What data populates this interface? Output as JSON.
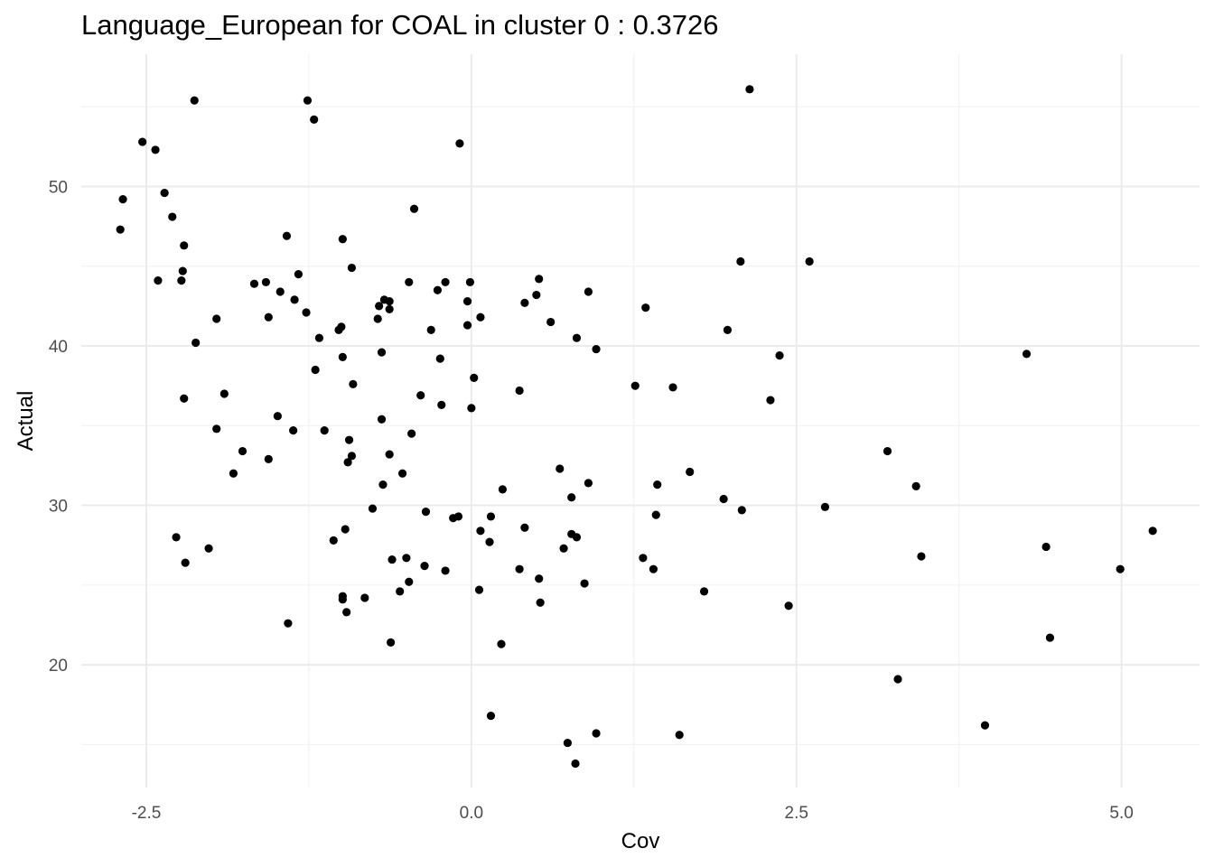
{
  "chart_data": {
    "type": "scatter",
    "title": "Language_European for COAL in cluster 0 : 0.3726",
    "xlabel": "Cov",
    "ylabel": "Actual",
    "xlim": [
      -3.0,
      5.6
    ],
    "ylim": [
      12.3,
      58.3
    ],
    "x_ticks": [
      -2.5,
      0.0,
      2.5,
      5.0
    ],
    "x_tick_labels": [
      "-2.5",
      "0.0",
      "2.5",
      "5.0"
    ],
    "y_ticks": [
      20,
      30,
      40,
      50
    ],
    "y_tick_labels": [
      "20",
      "30",
      "40",
      "50"
    ],
    "grid": true,
    "point_color": "#000000",
    "points": [
      {
        "x": -2.7,
        "y": 47.3
      },
      {
        "x": -2.68,
        "y": 49.2
      },
      {
        "x": -2.53,
        "y": 52.8
      },
      {
        "x": -2.43,
        "y": 52.3
      },
      {
        "x": -2.41,
        "y": 44.1
      },
      {
        "x": -2.36,
        "y": 49.6
      },
      {
        "x": -2.3,
        "y": 48.1
      },
      {
        "x": -2.27,
        "y": 28.0
      },
      {
        "x": -2.23,
        "y": 44.1
      },
      {
        "x": -2.22,
        "y": 44.7
      },
      {
        "x": -2.21,
        "y": 46.3
      },
      {
        "x": -2.21,
        "y": 36.7
      },
      {
        "x": -2.2,
        "y": 26.4
      },
      {
        "x": -2.13,
        "y": 55.4
      },
      {
        "x": -2.12,
        "y": 40.2
      },
      {
        "x": -2.02,
        "y": 27.3
      },
      {
        "x": -1.96,
        "y": 41.7
      },
      {
        "x": -1.96,
        "y": 34.8
      },
      {
        "x": -1.9,
        "y": 37.0
      },
      {
        "x": -1.83,
        "y": 32.0
      },
      {
        "x": -1.76,
        "y": 33.4
      },
      {
        "x": -1.67,
        "y": 43.9
      },
      {
        "x": -1.58,
        "y": 44.0
      },
      {
        "x": -1.56,
        "y": 41.8
      },
      {
        "x": -1.56,
        "y": 32.9
      },
      {
        "x": -1.49,
        "y": 35.6
      },
      {
        "x": -1.47,
        "y": 43.4
      },
      {
        "x": -1.42,
        "y": 46.9
      },
      {
        "x": -1.41,
        "y": 22.6
      },
      {
        "x": -1.37,
        "y": 34.7
      },
      {
        "x": -1.36,
        "y": 42.9
      },
      {
        "x": -1.33,
        "y": 44.5
      },
      {
        "x": -1.27,
        "y": 42.1
      },
      {
        "x": -1.26,
        "y": 55.4
      },
      {
        "x": -1.21,
        "y": 54.2
      },
      {
        "x": -1.2,
        "y": 38.5
      },
      {
        "x": -1.17,
        "y": 40.5
      },
      {
        "x": -1.13,
        "y": 34.7
      },
      {
        "x": -1.06,
        "y": 27.8
      },
      {
        "x": -1.02,
        "y": 41.0
      },
      {
        "x": -1.0,
        "y": 41.2
      },
      {
        "x": -0.99,
        "y": 46.7
      },
      {
        "x": -0.99,
        "y": 39.3
      },
      {
        "x": -0.99,
        "y": 24.3
      },
      {
        "x": -0.99,
        "y": 24.1
      },
      {
        "x": -0.97,
        "y": 28.5
      },
      {
        "x": -0.96,
        "y": 23.3
      },
      {
        "x": -0.95,
        "y": 32.7
      },
      {
        "x": -0.94,
        "y": 34.1
      },
      {
        "x": -0.92,
        "y": 33.1
      },
      {
        "x": -0.92,
        "y": 44.9
      },
      {
        "x": -0.91,
        "y": 37.6
      },
      {
        "x": -0.82,
        "y": 24.2
      },
      {
        "x": -0.76,
        "y": 29.8
      },
      {
        "x": -0.72,
        "y": 41.7
      },
      {
        "x": -0.71,
        "y": 42.5
      },
      {
        "x": -0.69,
        "y": 39.6
      },
      {
        "x": -0.69,
        "y": 35.4
      },
      {
        "x": -0.68,
        "y": 31.3
      },
      {
        "x": -0.67,
        "y": 42.9
      },
      {
        "x": -0.63,
        "y": 42.8
      },
      {
        "x": -0.63,
        "y": 42.3
      },
      {
        "x": -0.63,
        "y": 33.2
      },
      {
        "x": -0.62,
        "y": 21.4
      },
      {
        "x": -0.61,
        "y": 26.6
      },
      {
        "x": -0.55,
        "y": 24.6
      },
      {
        "x": -0.53,
        "y": 32.0
      },
      {
        "x": -0.5,
        "y": 26.7
      },
      {
        "x": -0.48,
        "y": 44.0
      },
      {
        "x": -0.48,
        "y": 25.2
      },
      {
        "x": -0.46,
        "y": 34.5
      },
      {
        "x": -0.44,
        "y": 48.6
      },
      {
        "x": -0.39,
        "y": 36.9
      },
      {
        "x": -0.36,
        "y": 26.2
      },
      {
        "x": -0.35,
        "y": 29.6
      },
      {
        "x": -0.31,
        "y": 41.0
      },
      {
        "x": -0.26,
        "y": 43.5
      },
      {
        "x": -0.24,
        "y": 39.2
      },
      {
        "x": -0.23,
        "y": 36.3
      },
      {
        "x": -0.2,
        "y": 25.9
      },
      {
        "x": -0.2,
        "y": 44.0
      },
      {
        "x": -0.14,
        "y": 29.2
      },
      {
        "x": -0.1,
        "y": 29.3
      },
      {
        "x": -0.09,
        "y": 52.7
      },
      {
        "x": -0.03,
        "y": 42.8
      },
      {
        "x": -0.03,
        "y": 41.3
      },
      {
        "x": -0.01,
        "y": 44.0
      },
      {
        "x": 0.0,
        "y": 36.1
      },
      {
        "x": 0.02,
        "y": 38.0
      },
      {
        "x": 0.06,
        "y": 24.7
      },
      {
        "x": 0.07,
        "y": 28.4
      },
      {
        "x": 0.07,
        "y": 41.8
      },
      {
        "x": 0.14,
        "y": 27.7
      },
      {
        "x": 0.15,
        "y": 29.3
      },
      {
        "x": 0.15,
        "y": 16.8
      },
      {
        "x": 0.23,
        "y": 21.3
      },
      {
        "x": 0.24,
        "y": 31.0
      },
      {
        "x": 0.37,
        "y": 37.2
      },
      {
        "x": 0.37,
        "y": 26.0
      },
      {
        "x": 0.41,
        "y": 42.7
      },
      {
        "x": 0.41,
        "y": 28.6
      },
      {
        "x": 0.5,
        "y": 43.2
      },
      {
        "x": 0.52,
        "y": 44.2
      },
      {
        "x": 0.52,
        "y": 25.4
      },
      {
        "x": 0.53,
        "y": 23.9
      },
      {
        "x": 0.61,
        "y": 41.5
      },
      {
        "x": 0.68,
        "y": 32.3
      },
      {
        "x": 0.71,
        "y": 27.3
      },
      {
        "x": 0.74,
        "y": 15.1
      },
      {
        "x": 0.77,
        "y": 28.2
      },
      {
        "x": 0.77,
        "y": 30.5
      },
      {
        "x": 0.8,
        "y": 13.8
      },
      {
        "x": 0.81,
        "y": 40.5
      },
      {
        "x": 0.81,
        "y": 28.0
      },
      {
        "x": 0.87,
        "y": 25.1
      },
      {
        "x": 0.9,
        "y": 43.4
      },
      {
        "x": 0.9,
        "y": 31.4
      },
      {
        "x": 0.96,
        "y": 15.7
      },
      {
        "x": 0.96,
        "y": 39.8
      },
      {
        "x": 1.26,
        "y": 37.5
      },
      {
        "x": 1.32,
        "y": 26.7
      },
      {
        "x": 1.34,
        "y": 42.4
      },
      {
        "x": 1.4,
        "y": 26.0
      },
      {
        "x": 1.42,
        "y": 29.4
      },
      {
        "x": 1.43,
        "y": 31.3
      },
      {
        "x": 1.55,
        "y": 37.4
      },
      {
        "x": 1.6,
        "y": 15.6
      },
      {
        "x": 1.68,
        "y": 32.1
      },
      {
        "x": 1.79,
        "y": 24.6
      },
      {
        "x": 1.94,
        "y": 30.4
      },
      {
        "x": 1.97,
        "y": 41.0
      },
      {
        "x": 2.07,
        "y": 45.3
      },
      {
        "x": 2.08,
        "y": 29.7
      },
      {
        "x": 2.14,
        "y": 56.1
      },
      {
        "x": 2.3,
        "y": 36.6
      },
      {
        "x": 2.37,
        "y": 39.4
      },
      {
        "x": 2.44,
        "y": 23.7
      },
      {
        "x": 2.6,
        "y": 45.3
      },
      {
        "x": 2.72,
        "y": 29.9
      },
      {
        "x": 3.2,
        "y": 33.4
      },
      {
        "x": 3.28,
        "y": 19.1
      },
      {
        "x": 3.42,
        "y": 31.2
      },
      {
        "x": 3.46,
        "y": 26.8
      },
      {
        "x": 3.95,
        "y": 16.2
      },
      {
        "x": 4.27,
        "y": 39.5
      },
      {
        "x": 4.42,
        "y": 27.4
      },
      {
        "x": 4.45,
        "y": 21.7
      },
      {
        "x": 4.99,
        "y": 26.0
      },
      {
        "x": 5.24,
        "y": 28.4
      }
    ]
  }
}
